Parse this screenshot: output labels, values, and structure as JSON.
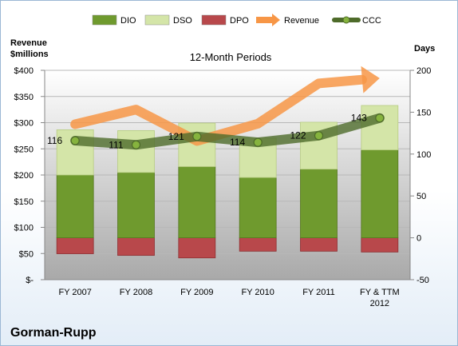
{
  "chart_data": {
    "type": "bar",
    "title": "12-Month Periods",
    "company": "Gorman-Rupp",
    "y_left": {
      "label_lines": [
        "Revenue",
        "$millions"
      ],
      "min": 0,
      "max": 400,
      "step": 50,
      "tick_labels": [
        "$-",
        "$50",
        "$100",
        "$150",
        "$200",
        "$250",
        "$300",
        "$350",
        "$400"
      ]
    },
    "y_right": {
      "label": "Days",
      "min": -50,
      "max": 200,
      "step": 50,
      "tick_labels": [
        "-50",
        "0",
        "50",
        "100",
        "150",
        "200"
      ]
    },
    "categories": [
      [
        "FY 2007"
      ],
      [
        "FY 2008"
      ],
      [
        "FY 2009"
      ],
      [
        "FY 2010"
      ],
      [
        "FY 2011"
      ],
      [
        "FY & TTM",
        "2012"
      ]
    ],
    "legend": [
      "DIO",
      "DSO",
      "DPO",
      "Revenue",
      "CCC"
    ],
    "series": [
      {
        "name": "DIO",
        "axis": "days",
        "values": [
          75,
          78,
          85,
          72,
          82,
          105
        ],
        "color": "#6f9a2e"
      },
      {
        "name": "DSO",
        "axis": "days",
        "values": [
          54,
          50,
          52,
          47,
          56,
          53
        ],
        "color": "#d4e5a8"
      },
      {
        "name": "DPO",
        "axis": "days",
        "values": [
          -19,
          -21,
          -24,
          -16,
          -16,
          -17
        ],
        "color": "#b8484b"
      },
      {
        "name": "Revenue",
        "axis": "revenue",
        "values": [
          297,
          325,
          265,
          298,
          375,
          385
        ],
        "color": "#f79646"
      },
      {
        "name": "CCC",
        "axis": "days",
        "values": [
          116,
          111,
          121,
          114,
          122,
          143
        ],
        "color": "#4e6b2a"
      }
    ],
    "data_labels": [
      "116",
      "111",
      "121",
      "114",
      "122",
      "143"
    ],
    "grid": true,
    "legend_position": "top"
  }
}
